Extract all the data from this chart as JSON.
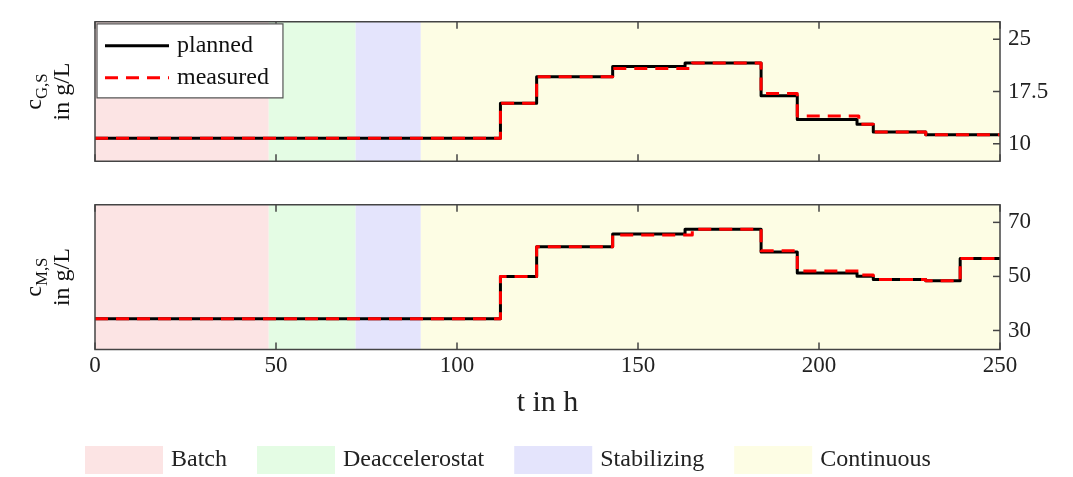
{
  "chart_data": [
    {
      "type": "step",
      "ylabel": "c$_{G,S}$ in g/L",
      "xlim": [
        0,
        250
      ],
      "xticks": [
        0,
        50,
        100,
        150,
        200,
        250
      ],
      "ylim": [
        7.5,
        27.5
      ],
      "yticks": [
        10,
        17.5,
        25
      ],
      "tick_labels": "y",
      "grid": false,
      "legend": "top left",
      "bands": [
        {
          "axis": "x",
          "from": 0,
          "to": 48,
          "color": "#fce4e4"
        },
        {
          "axis": "x",
          "from": 48,
          "to": 72,
          "color": "#e4fce4"
        },
        {
          "axis": "x",
          "from": 72,
          "to": 90,
          "color": "#e4e4fc"
        },
        {
          "axis": "x",
          "from": 90,
          "to": 250,
          "color": "#fdfde4"
        }
      ],
      "series": [
        {
          "name": "planned",
          "color": "#000000",
          "line_style": "solid",
          "x": [
            0,
            112,
            122,
            143,
            163,
            184,
            194,
            210.5,
            215,
            229.5,
            250
          ],
          "values": [
            10.8,
            15.8,
            19.6,
            21.1,
            21.6,
            16.9,
            13.5,
            12.8,
            11.7,
            11.3,
            11.3
          ]
        },
        {
          "name": "measured",
          "color": "#ff0000",
          "line_style": "dashed",
          "x": [
            0,
            112,
            122,
            143,
            165,
            184,
            194,
            211,
            215,
            229.5,
            250
          ],
          "values": [
            10.8,
            15.8,
            19.6,
            20.8,
            21.6,
            17.2,
            14.0,
            12.8,
            11.7,
            11.3,
            11.3
          ]
        }
      ]
    },
    {
      "type": "step",
      "ylabel": "c$_{M,S}$ in g/L",
      "xlabel": "t in h",
      "xlim": [
        0,
        250
      ],
      "xticks": [
        0,
        50,
        100,
        150,
        200,
        250
      ],
      "ylim": [
        23,
        76.5
      ],
      "yticks": [
        30,
        50,
        70
      ],
      "grid": false,
      "legend": "bottom",
      "bands": [
        {
          "axis": "x",
          "from": 0,
          "to": 48,
          "label": "Batch",
          "color": "#fce4e4"
        },
        {
          "axis": "x",
          "from": 48,
          "to": 72,
          "label": "Deaccelerostat",
          "color": "#e4fce4"
        },
        {
          "axis": "x",
          "from": 72,
          "to": 90,
          "label": "Stabilizing",
          "color": "#e4e4fc"
        },
        {
          "axis": "x",
          "from": 90,
          "to": 250,
          "label": "Continuous",
          "color": "#fdfde4"
        }
      ],
      "series": [
        {
          "color": "#000000",
          "line_style": "solid",
          "x": [
            0,
            112,
            122,
            143,
            163,
            184,
            194,
            210.5,
            215,
            229.5,
            239,
            250
          ],
          "values": [
            34.3,
            50,
            61,
            65.7,
            67.5,
            59,
            51.3,
            50.1,
            48.9,
            48.4,
            56.6,
            56.6
          ]
        },
        {
          "color": "#ff0000",
          "line_style": "dashed",
          "x": [
            0,
            112,
            122,
            143,
            165,
            184,
            194,
            211,
            215,
            229.5,
            239,
            250
          ],
          "values": [
            34.3,
            50,
            61,
            65.3,
            67.5,
            59.5,
            52,
            50.5,
            48.9,
            48.4,
            56.6,
            56.6
          ]
        }
      ]
    }
  ]
}
